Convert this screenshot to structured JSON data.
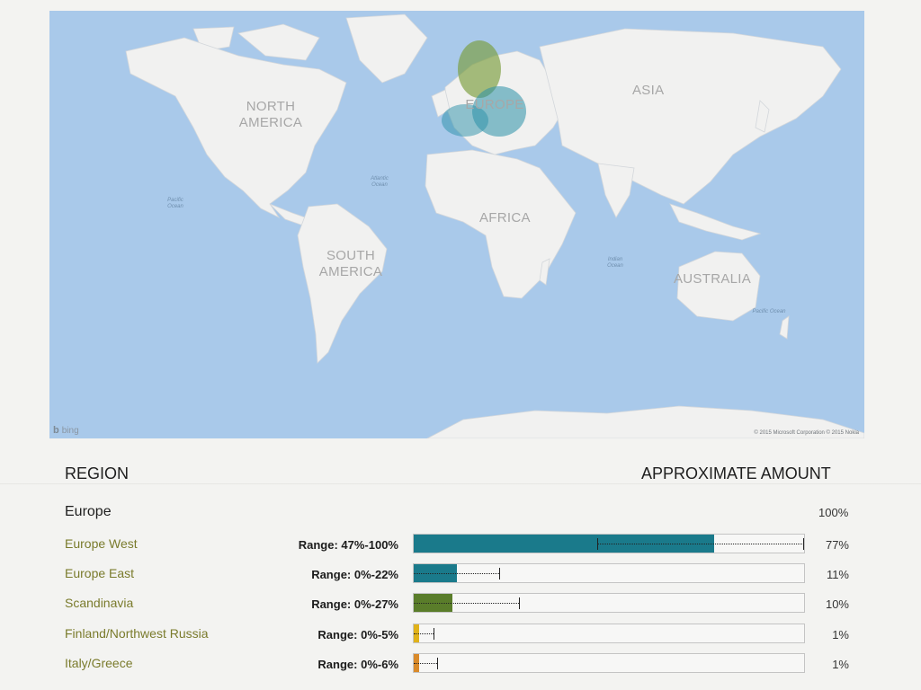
{
  "map": {
    "continents": {
      "north_america": "NORTH AMERICA",
      "south_america": "SOUTH AMERICA",
      "europe": "EUROPE",
      "asia": "ASIA",
      "africa": "AFRICA",
      "australia": "AUSTRALIA"
    },
    "oceans": {
      "pacific_west": "Pacific Ocean",
      "atlantic": "Atlantic Ocean",
      "indian": "Indian Ocean",
      "pacific_east": "Pacific Ocean"
    },
    "logo_text": "bing",
    "copyright": "© 2015 Microsoft Corporation © 2015 Nokia",
    "land_color": "#f1f1f0",
    "water_color": "#a9c9ea"
  },
  "table": {
    "region_header": "REGION",
    "amount_header": "APPROXIMATE AMOUNT",
    "group_name": "Europe",
    "group_percent": "100%"
  },
  "chart_data": {
    "type": "bar",
    "categories": [
      "Europe West",
      "Europe East",
      "Scandinavia",
      "Finland/Northwest Russia",
      "Italy/Greece"
    ],
    "values": [
      77,
      11,
      10,
      1,
      1
    ],
    "ranges": [
      [
        47,
        100
      ],
      [
        0,
        22
      ],
      [
        0,
        27
      ],
      [
        0,
        5
      ],
      [
        0,
        6
      ]
    ],
    "range_labels": [
      "Range: 47%-100%",
      "Range: 0%-22%",
      "Range: 0%-27%",
      "Range: 0%-5%",
      "Range: 0%-6%"
    ],
    "value_labels": [
      "77%",
      "11%",
      "10%",
      "1%",
      "1%"
    ],
    "colors": [
      "#1a7a8b",
      "#1a7a8b",
      "#5a7d2a",
      "#e0b21a",
      "#d98a2a"
    ],
    "ylim": [
      0,
      100
    ]
  }
}
